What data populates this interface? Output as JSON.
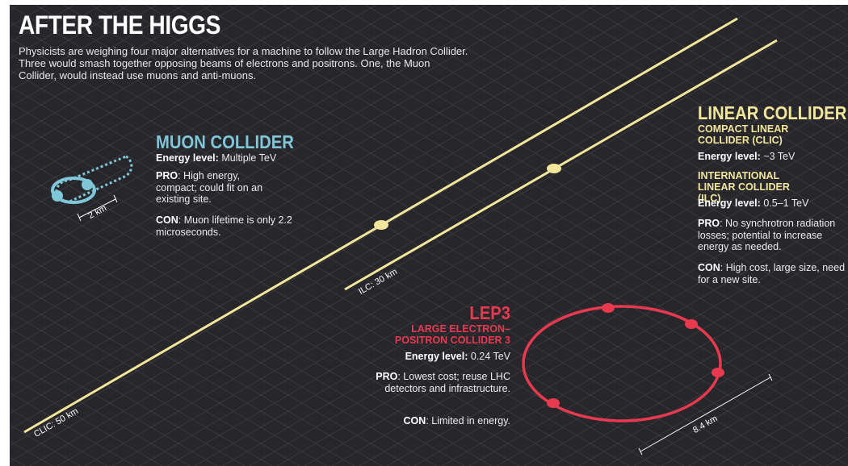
{
  "header": {
    "title": "AFTER THE HIGGS",
    "intro": "Physicists are weighing four major alternatives for a machine to follow the Large Hadron Collider. Three would smash together opposing beams of electrons and positrons. One, the Muon Collider, would instead use muons and anti-muons."
  },
  "muon": {
    "heading": "MUON COLLIDER",
    "energy_label": "Energy level:",
    "energy_value": "Multiple TeV",
    "pro_label": "PRO",
    "pro_text": ": High energy, compact; could fit on an existing site.",
    "con_label": "CON",
    "con_text": ": Muon lifetime is only 2.2 microseconds.",
    "scale": "2 km"
  },
  "linear": {
    "heading": "LINEAR COLLIDER",
    "clic_name": "COMPACT LINEAR COLLIDER (CLIC)",
    "clic_energy_label": "Energy level:",
    "clic_energy_value": "~3 TeV",
    "ilc_name": "INTERNATIONAL LINEAR COLLIDER (ILC)",
    "ilc_energy_label": "Energy level:",
    "ilc_energy_value": "0.5–1 TeV",
    "pro_label": "PRO",
    "pro_text": ": No synchrotron radiation losses; potential to increase energy as needed.",
    "con_label": "CON",
    "con_text": ": High cost, large size, need for a new site.",
    "ilc_scale": "ILC: 30 km",
    "clic_scale": "CLIC: 50 km"
  },
  "lep3": {
    "heading": "LEP3",
    "name": "LARGE ELECTRON– POSITRON COLLIDER 3",
    "energy_label": "Energy level:",
    "energy_value": "0.24 TeV",
    "pro_label": "PRO",
    "pro_text": ": Lowest cost; reuse LHC detectors and infrastructure.",
    "con_label": "CON",
    "con_text": ": Limited in energy.",
    "scale": "8.4 km"
  },
  "colors": {
    "background": "#26262b",
    "grid": "#3a3a40",
    "muon": "#7fc6d9",
    "linear": "#f2e69a",
    "lep3": "#e8394f"
  }
}
